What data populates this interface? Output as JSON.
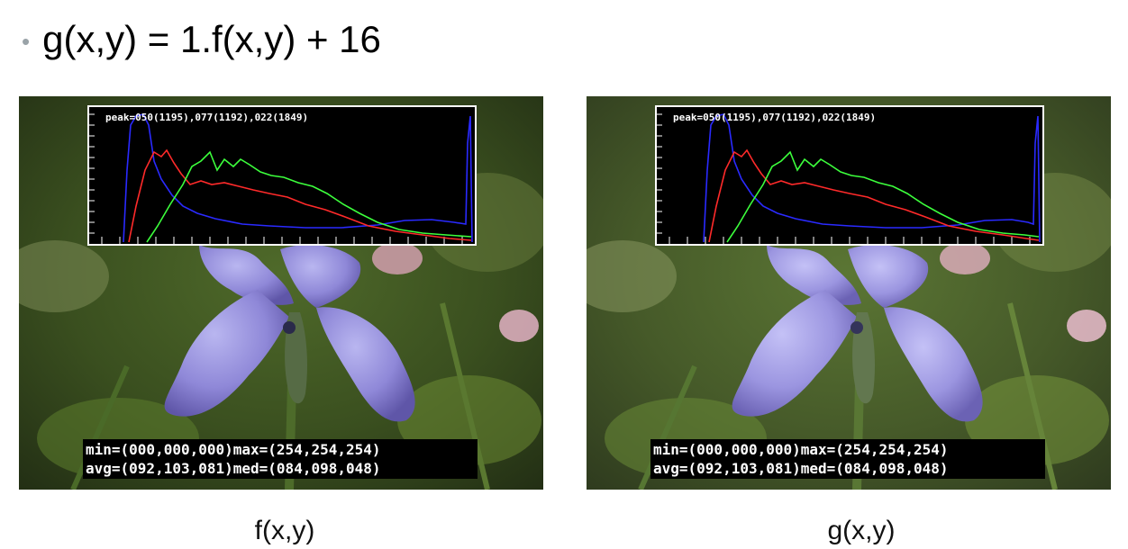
{
  "slide": {
    "bullet": "•",
    "equation": "g(x,y) = 1.f(x,y) + 16"
  },
  "panels": [
    {
      "histogram_label": "peak=050(1195),077(1192),022(1849)",
      "stats_line1": "min=(000,000,000)max=(254,254,254)",
      "stats_line2": "avg=(092,103,081)med=(084,098,048)",
      "caption": "f(x,y)"
    },
    {
      "histogram_label": "peak=050(1195),077(1192),022(1849)",
      "stats_line1": "min=(000,000,000)max=(254,254,254)",
      "stats_line2": "avg=(092,103,081)med=(084,098,048)",
      "caption": "g(x,y)"
    }
  ],
  "colors": {
    "histogram_red": "#ff2a2a",
    "histogram_green": "#3cff3c",
    "histogram_blue": "#2a2aff"
  }
}
